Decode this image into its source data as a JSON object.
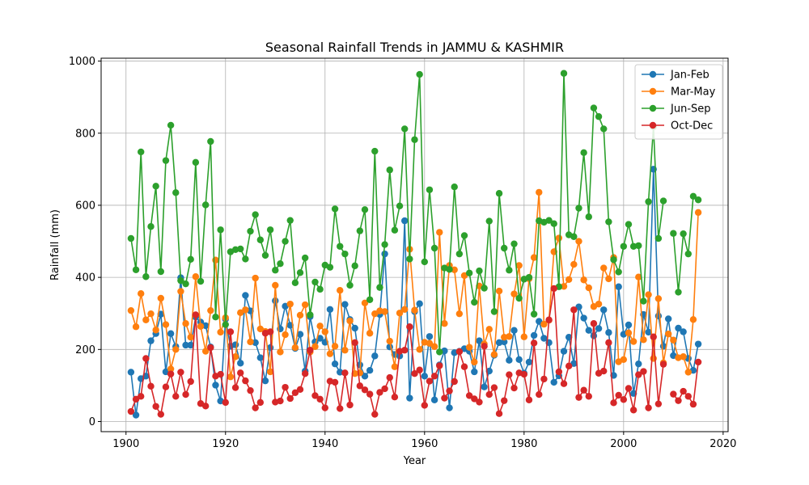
{
  "chart_data": {
    "type": "line",
    "title": "Seasonal Rainfall Trends in JAMMU & KASHMIR",
    "xlabel": "Year",
    "ylabel": "Rainfall (mm)",
    "xlim": [
      1895,
      2021
    ],
    "ylim": [
      -28,
      1008
    ],
    "xticks": [
      1900,
      1920,
      1940,
      1960,
      1980,
      2000,
      2020
    ],
    "yticks": [
      0,
      200,
      400,
      600,
      800,
      1000
    ],
    "grid": true,
    "legend_position": "top-right",
    "x_start": 1901,
    "series": [
      {
        "name": "Jan-Feb",
        "color": "#1f77b4",
        "values": [
          137,
          18,
          119,
          126,
          224,
          244,
          298,
          138,
          244,
          208,
          399,
          212,
          212,
          290,
          276,
          266,
          207,
          101,
          57,
          284,
          209,
          213,
          162,
          350,
          307,
          219,
          177,
          113,
          205,
          335,
          257,
          320,
          267,
          203,
          242,
          140,
          291,
          221,
          231,
          220,
          311,
          160,
          137,
          325,
          283,
          259,
          157,
          126,
          142,
          182,
          297,
          465,
          207,
          186,
          182,
          557,
          65,
          305,
          327,
          126,
          236,
          60,
          157,
          196,
          38,
          191,
          195,
          202,
          195,
          138,
          224,
          96,
          140,
          184,
          219,
          221,
          170,
          253,
          172,
          134,
          165,
          239,
          278,
          231,
          219,
          109,
          127,
          195,
          234,
          161,
          318,
          287,
          253,
          238,
          258,
          310,
          247,
          128,
          374,
          242,
          268,
          78,
          160,
          297,
          248,
          700,
          293,
          209,
          285,
          183,
          259,
          249,
          175,
          142,
          215
        ]
      },
      {
        "name": "Mar-May",
        "color": "#ff7f0e",
        "values": [
          308,
          263,
          355,
          282,
          299,
          254,
          342,
          269,
          146,
          200,
          361,
          272,
          234,
          402,
          264,
          195,
          308,
          448,
          248,
          288,
          124,
          180,
          302,
          310,
          221,
          398,
          257,
          250,
          138,
          378,
          193,
          241,
          326,
          205,
          295,
          324,
          193,
          208,
          265,
          249,
          188,
          209,
          364,
          198,
          279,
          133,
          135,
          329,
          245,
          299,
          307,
          305,
          223,
          152,
          301,
          311,
          478,
          309,
          200,
          220,
          217,
          208,
          525,
          272,
          433,
          421,
          299,
          405,
          206,
          165,
          376,
          215,
          256,
          186,
          362,
          234,
          236,
          354,
          433,
          235,
          396,
          455,
          636,
          270,
          281,
          471,
          509,
          375,
          394,
          436,
          500,
          393,
          371,
          319,
          326,
          426,
          396,
          455,
          166,
          172,
          246,
          222,
          401,
          227,
          352,
          175,
          341,
          163,
          243,
          226,
          177,
          180,
          137,
          283,
          580
        ]
      },
      {
        "name": "Jun-Sep",
        "color": "#2ca02c",
        "values": [
          508,
          421,
          748,
          402,
          541,
          653,
          416,
          724,
          822,
          635,
          391,
          382,
          450,
          719,
          389,
          601,
          777,
          290,
          532,
          269,
          471,
          477,
          479,
          451,
          528,
          574,
          504,
          461,
          532,
          420,
          438,
          500,
          558,
          385,
          413,
          454,
          296,
          387,
          367,
          434,
          428,
          590,
          486,
          465,
          378,
          432,
          529,
          588,
          338,
          750,
          372,
          491,
          698,
          531,
          598,
          812,
          451,
          782,
          963,
          443,
          643,
          481,
          193,
          426,
          422,
          651,
          465,
          516,
          412,
          331,
          418,
          370,
          556,
          305,
          633,
          481,
          420,
          493,
          342,
          395,
          400,
          298,
          557,
          553,
          558,
          549,
          374,
          966,
          518,
          513,
          592,
          746,
          568,
          870,
          846,
          812,
          554,
          449,
          415,
          486,
          547,
          486,
          488,
          334,
          610,
          818,
          508,
          612,
          null,
          522,
          359,
          521,
          465,
          625,
          615
        ]
      },
      {
        "name": "Oct-Dec",
        "color": "#d62728",
        "values": [
          28,
          62,
          70,
          175,
          98,
          42,
          20,
          96,
          132,
          70,
          137,
          75,
          111,
          296,
          50,
          43,
          205,
          126,
          131,
          53,
          249,
          94,
          135,
          113,
          86,
          38,
          53,
          245,
          249,
          54,
          57,
          95,
          64,
          80,
          89,
          133,
          198,
          72,
          62,
          38,
          112,
          109,
          36,
          135,
          46,
          219,
          99,
          88,
          76,
          20,
          81,
          91,
          122,
          68,
          195,
          198,
          263,
          133,
          143,
          45,
          112,
          126,
          155,
          65,
          85,
          111,
          194,
          152,
          72,
          63,
          54,
          209,
          75,
          94,
          22,
          58,
          130,
          93,
          135,
          131,
          60,
          218,
          75,
          118,
          282,
          369,
          138,
          105,
          154,
          310,
          67,
          87,
          70,
          272,
          134,
          140,
          219,
          52,
          73,
          61,
          92,
          32,
          130,
          139,
          38,
          235,
          49,
          159,
          null,
          76,
          58,
          84,
          70,
          48,
          165
        ]
      }
    ]
  }
}
